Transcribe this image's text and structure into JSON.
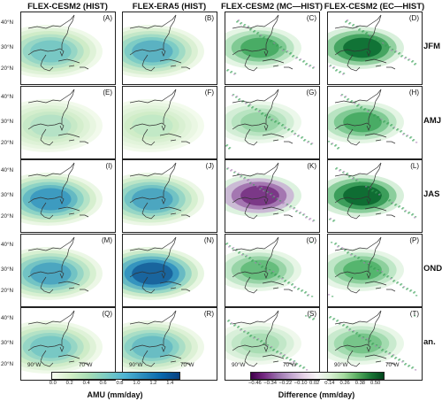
{
  "columns": [
    "FLEX-CESM2 (HIST)",
    "FLEX-ERA5 (HIST)",
    "FLEX-CESM2 (MC—HIST)",
    "FLEX-CESM2 (EC—HIST)"
  ],
  "rows": [
    "JFM",
    "AMJ",
    "JAS",
    "OND",
    "an."
  ],
  "panel_labels": [
    [
      "(A)",
      "(B)",
      "(C)",
      "(D)"
    ],
    [
      "(E)",
      "(F)",
      "(G)",
      "(H)"
    ],
    [
      "(I)",
      "(J)",
      "(K)",
      "(L)"
    ],
    [
      "(M)",
      "(N)",
      "(O)",
      "(P)"
    ],
    [
      "(Q)",
      "(R)",
      "(S)",
      "(T)"
    ]
  ],
  "lat_ticks": [
    "40°N",
    "30°N",
    "20°N"
  ],
  "lon_ticks": [
    "90°W",
    "70°W"
  ],
  "colorbar_amu": {
    "title": "AMU (mm/day)",
    "ticks": [
      "0.0",
      "0.2",
      "0.4",
      "0.6",
      "0.8",
      "1.0",
      "1.2",
      "1.4"
    ],
    "colors": [
      "#f7fcf0",
      "#d4efc8",
      "#a8ddb5",
      "#7bccc4",
      "#4eb3d3",
      "#2b8cbe",
      "#0868ac",
      "#084081"
    ]
  },
  "colorbar_diff": {
    "title": "Difference (mm/day)",
    "ticks": [
      "−0.46",
      "−0.34",
      "−0.22",
      "−0.10",
      "0.02",
      "0.14",
      "0.26",
      "0.38",
      "0.50"
    ],
    "colors": [
      "#40004b",
      "#762a83",
      "#9970ab",
      "#c2a5cf",
      "#e7d4e8",
      "#f7f7f7",
      "#d9f0d3",
      "#a6dba0",
      "#5aae61",
      "#1b7837",
      "#00441b"
    ]
  },
  "intensity": [
    [
      0.55,
      0.65,
      0.6,
      0.9
    ],
    [
      0.35,
      0.3,
      0.35,
      0.6
    ],
    [
      0.75,
      0.7,
      -0.8,
      0.95
    ],
    [
      0.7,
      0.95,
      0.5,
      0.55
    ],
    [
      0.55,
      0.6,
      0.3,
      0.45
    ]
  ]
}
